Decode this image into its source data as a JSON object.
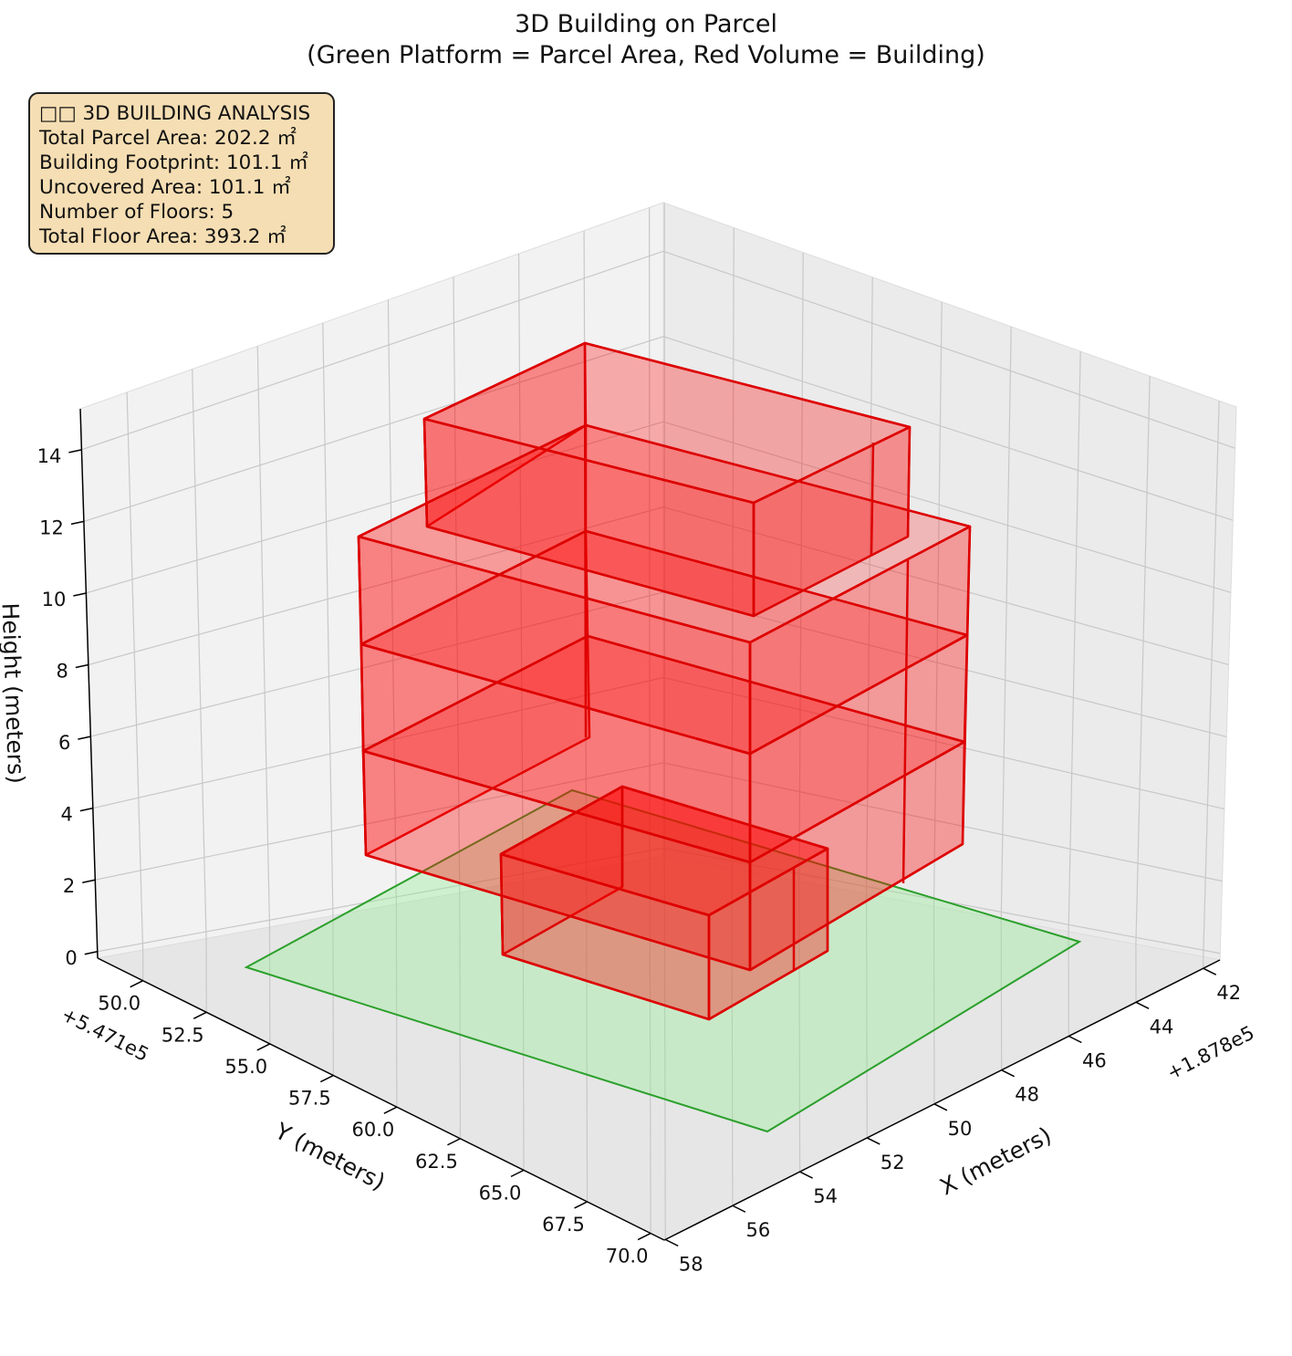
{
  "title_line1": "3D Building on Parcel",
  "title_line2": "(Green Platform = Parcel Area, Red Volume = Building)",
  "info_box": {
    "heading": "□□ 3D BUILDING ANALYSIS",
    "lines": [
      "Total Parcel Area: 202.2 ㎡",
      "Building Footprint: 101.1 ㎡",
      "Uncovered Area: 101.1 ㎡",
      "Number of Floors: 5",
      "Total Floor Area: 393.2 ㎡"
    ]
  },
  "colors": {
    "parcel_fill": "#90ee90",
    "parcel_edge": "#2ca02c",
    "building_fill": "#ff0000",
    "building_edge": "#dd0000",
    "pane": "#f2f2f2",
    "grid": "#c8c8c8",
    "infobox": "#f5deb3"
  },
  "chart_data": {
    "type": "3d-box",
    "title": "3D Building on Parcel\n(Green Platform = Parcel Area, Red Volume = Building)",
    "xlabel": "X (meters)",
    "ylabel": "Y (meters)",
    "zlabel": "Height (meters)",
    "x_offset_label": "+1.878e5",
    "y_offset_label": "+5.471e5",
    "x_ticks": [
      "42",
      "44",
      "46",
      "48",
      "50",
      "52",
      "54",
      "56",
      "58"
    ],
    "y_ticks": [
      "50.0",
      "52.5",
      "55.0",
      "57.5",
      "60.0",
      "62.5",
      "65.0",
      "67.5",
      "70.0"
    ],
    "z_ticks": [
      "0",
      "2",
      "4",
      "6",
      "8",
      "10",
      "12",
      "14"
    ],
    "floors": 5,
    "total_parcel_area_m2": 202.2,
    "building_footprint_m2": 101.1,
    "uncovered_area_m2": 101.1,
    "total_floor_area_m2": 393.2
  }
}
